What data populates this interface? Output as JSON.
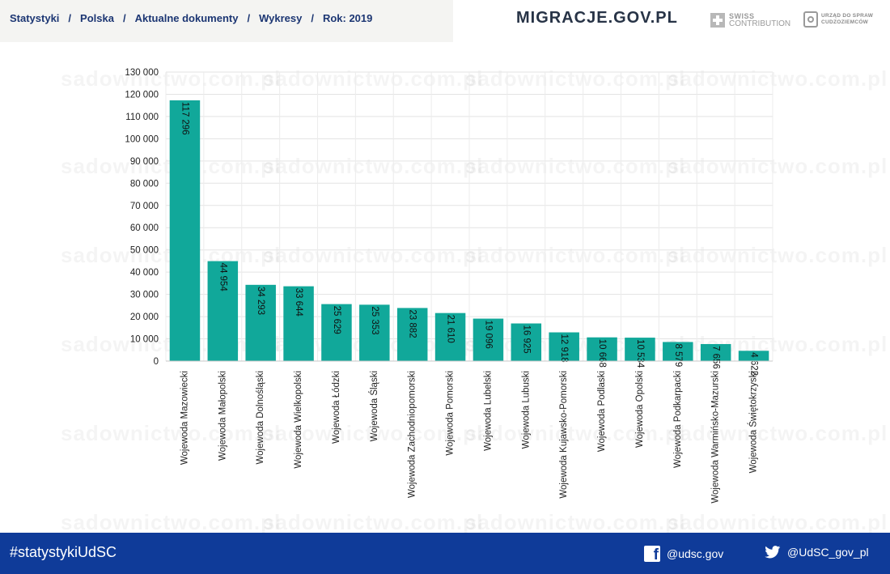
{
  "breadcrumb": {
    "items": [
      "Statystyki",
      "Polska",
      "Aktualne dokumenty",
      "Wykresy",
      "Rok: 2019"
    ],
    "separator": "/"
  },
  "header": {
    "site_logo": "MIGRACJE.GOV.PL",
    "partner_swiss": {
      "line1": "SWISS",
      "line2": "CONTRIBUTION"
    },
    "partner_udsc": {
      "line1": "URZĄD DO SPRAW",
      "line2": "CUDZOZIEMCÓW"
    }
  },
  "watermark_text": "sadownictwo.com.pl",
  "chart_data": {
    "type": "bar",
    "title": "",
    "xlabel": "",
    "ylabel": "",
    "ylim": [
      0,
      130000
    ],
    "ytick_step": 10000,
    "yticks": [
      "0",
      "10 000",
      "20 000",
      "30 000",
      "40 000",
      "50 000",
      "60 000",
      "70 000",
      "80 000",
      "90 000",
      "100 000",
      "110 000",
      "120 000",
      "130 000"
    ],
    "grid": true,
    "bar_color": "#11a89a",
    "categories": [
      "Wojewoda Mazowiecki",
      "Wojewoda Małopolski",
      "Wojewoda Dolnośląski",
      "Wojewoda Wielkopolski",
      "Wojewoda Łódzki",
      "Wojewoda Śląski",
      "Wojewoda Zachodniopomorski",
      "Wojewoda Pomorski",
      "Wojewoda Lubelski",
      "Wojewoda Lubuski",
      "Wojewoda Kujawsko-Pomorski",
      "Wojewoda Podlaski",
      "Wojewoda Opolski",
      "Wojewoda Podkarpacki",
      "Wojewoda Warmińsko-Mazurski",
      "Wojewoda Świętokrzyski"
    ],
    "values": [
      117296,
      44954,
      34293,
      33644,
      25629,
      25353,
      23882,
      21610,
      19096,
      16925,
      12918,
      10668,
      10534,
      8579,
      7656,
      4622
    ],
    "value_labels": [
      "117 296",
      "44 954",
      "34 293",
      "33 644",
      "25 629",
      "25 353",
      "23 882",
      "21 610",
      "19 096",
      "16 925",
      "12 918",
      "10 668",
      "10 534",
      "8 579",
      "7 656",
      "4 622"
    ]
  },
  "footer": {
    "hashtag": "#statystykiUdSC",
    "facebook_handle": "@udsc.gov",
    "twitter_handle": "@UdSC_gov_pl",
    "background_color": "#0f3b99"
  }
}
